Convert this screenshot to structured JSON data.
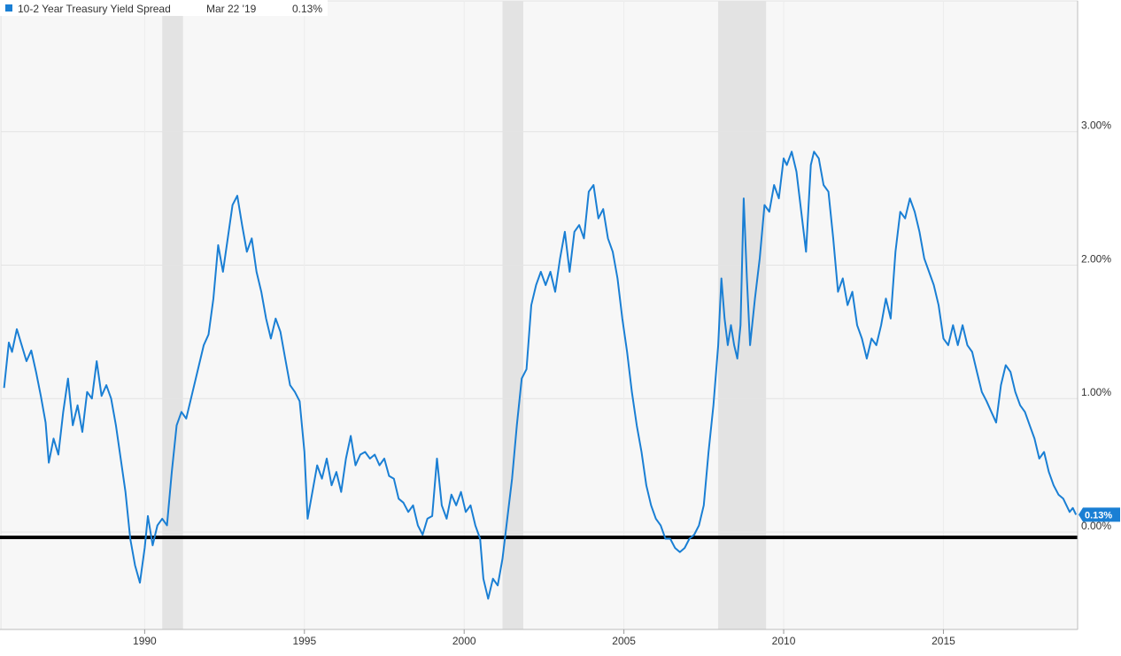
{
  "chart_data": {
    "type": "line",
    "title": "",
    "xlabel": "",
    "ylabel": "",
    "xlim": [
      1985.5,
      2019.2
    ],
    "ylim": [
      -0.73,
      3.98
    ],
    "grid": true,
    "legend": {
      "placement": "top-left",
      "series_name": "10-2 Year Treasury Yield Spread",
      "date": "Mar 22 '19",
      "value": "0.13%",
      "color": "#1a7fd4"
    },
    "last_value_label": "0.13%",
    "x_ticks": [
      {
        "x": 1990,
        "label": "1990"
      },
      {
        "x": 1995,
        "label": "1995"
      },
      {
        "x": 2000,
        "label": "2000"
      },
      {
        "x": 2005,
        "label": "2005"
      },
      {
        "x": 2010,
        "label": "2010"
      },
      {
        "x": 2015,
        "label": "2015"
      }
    ],
    "y_ticks": [
      {
        "y": 0,
        "label": "0.00%"
      },
      {
        "y": 1,
        "label": "1.00%"
      },
      {
        "y": 2,
        "label": "2.00%"
      },
      {
        "y": 3,
        "label": "3.00%"
      }
    ],
    "recessions": [
      [
        1990.55,
        1991.2
      ],
      [
        2001.2,
        2001.85
      ],
      [
        2007.95,
        2009.45
      ]
    ],
    "reference_line": {
      "y": -0.04,
      "color": "#000000"
    },
    "series": [
      {
        "name": "10-2 Year Treasury Yield Spread",
        "color": "#1a7fd4",
        "points": [
          [
            1985.6,
            1.08
          ],
          [
            1985.75,
            1.42
          ],
          [
            1985.85,
            1.35
          ],
          [
            1986.0,
            1.52
          ],
          [
            1986.15,
            1.4
          ],
          [
            1986.3,
            1.28
          ],
          [
            1986.45,
            1.36
          ],
          [
            1986.6,
            1.2
          ],
          [
            1986.75,
            1.02
          ],
          [
            1986.9,
            0.82
          ],
          [
            1987.0,
            0.52
          ],
          [
            1987.15,
            0.7
          ],
          [
            1987.3,
            0.58
          ],
          [
            1987.45,
            0.9
          ],
          [
            1987.6,
            1.15
          ],
          [
            1987.75,
            0.8
          ],
          [
            1987.9,
            0.95
          ],
          [
            1988.05,
            0.75
          ],
          [
            1988.2,
            1.05
          ],
          [
            1988.35,
            1.0
          ],
          [
            1988.5,
            1.28
          ],
          [
            1988.65,
            1.02
          ],
          [
            1988.8,
            1.1
          ],
          [
            1988.95,
            1.0
          ],
          [
            1989.1,
            0.8
          ],
          [
            1989.25,
            0.55
          ],
          [
            1989.4,
            0.3
          ],
          [
            1989.55,
            -0.05
          ],
          [
            1989.7,
            -0.25
          ],
          [
            1989.85,
            -0.38
          ],
          [
            1990.0,
            -0.12
          ],
          [
            1990.1,
            0.12
          ],
          [
            1990.25,
            -0.1
          ],
          [
            1990.4,
            0.05
          ],
          [
            1990.55,
            0.1
          ],
          [
            1990.7,
            0.05
          ],
          [
            1990.85,
            0.45
          ],
          [
            1991.0,
            0.8
          ],
          [
            1991.15,
            0.9
          ],
          [
            1991.3,
            0.85
          ],
          [
            1991.5,
            1.05
          ],
          [
            1991.7,
            1.25
          ],
          [
            1991.85,
            1.4
          ],
          [
            1992.0,
            1.48
          ],
          [
            1992.15,
            1.75
          ],
          [
            1992.3,
            2.15
          ],
          [
            1992.45,
            1.95
          ],
          [
            1992.6,
            2.2
          ],
          [
            1992.75,
            2.45
          ],
          [
            1992.9,
            2.52
          ],
          [
            1993.05,
            2.3
          ],
          [
            1993.2,
            2.1
          ],
          [
            1993.35,
            2.2
          ],
          [
            1993.5,
            1.95
          ],
          [
            1993.65,
            1.8
          ],
          [
            1993.8,
            1.6
          ],
          [
            1993.95,
            1.45
          ],
          [
            1994.1,
            1.6
          ],
          [
            1994.25,
            1.5
          ],
          [
            1994.4,
            1.3
          ],
          [
            1994.55,
            1.1
          ],
          [
            1994.7,
            1.05
          ],
          [
            1994.85,
            0.98
          ],
          [
            1995.0,
            0.6
          ],
          [
            1995.1,
            0.1
          ],
          [
            1995.25,
            0.3
          ],
          [
            1995.4,
            0.5
          ],
          [
            1995.55,
            0.4
          ],
          [
            1995.7,
            0.55
          ],
          [
            1995.85,
            0.35
          ],
          [
            1996.0,
            0.45
          ],
          [
            1996.15,
            0.3
          ],
          [
            1996.3,
            0.55
          ],
          [
            1996.45,
            0.72
          ],
          [
            1996.6,
            0.5
          ],
          [
            1996.75,
            0.58
          ],
          [
            1996.9,
            0.6
          ],
          [
            1997.05,
            0.55
          ],
          [
            1997.2,
            0.58
          ],
          [
            1997.35,
            0.5
          ],
          [
            1997.5,
            0.55
          ],
          [
            1997.65,
            0.42
          ],
          [
            1997.8,
            0.4
          ],
          [
            1997.95,
            0.25
          ],
          [
            1998.1,
            0.22
          ],
          [
            1998.25,
            0.15
          ],
          [
            1998.4,
            0.2
          ],
          [
            1998.55,
            0.05
          ],
          [
            1998.7,
            -0.02
          ],
          [
            1998.85,
            0.1
          ],
          [
            1999.0,
            0.12
          ],
          [
            1999.15,
            0.55
          ],
          [
            1999.3,
            0.2
          ],
          [
            1999.45,
            0.1
          ],
          [
            1999.6,
            0.28
          ],
          [
            1999.75,
            0.2
          ],
          [
            1999.9,
            0.3
          ],
          [
            2000.05,
            0.15
          ],
          [
            2000.2,
            0.2
          ],
          [
            2000.35,
            0.05
          ],
          [
            2000.5,
            -0.05
          ],
          [
            2000.6,
            -0.35
          ],
          [
            2000.75,
            -0.5
          ],
          [
            2000.9,
            -0.35
          ],
          [
            2001.05,
            -0.4
          ],
          [
            2001.2,
            -0.2
          ],
          [
            2001.35,
            0.1
          ],
          [
            2001.5,
            0.4
          ],
          [
            2001.65,
            0.8
          ],
          [
            2001.8,
            1.15
          ],
          [
            2001.95,
            1.22
          ],
          [
            2002.1,
            1.7
          ],
          [
            2002.25,
            1.85
          ],
          [
            2002.4,
            1.95
          ],
          [
            2002.55,
            1.85
          ],
          [
            2002.7,
            1.95
          ],
          [
            2002.85,
            1.8
          ],
          [
            2003.0,
            2.05
          ],
          [
            2003.15,
            2.25
          ],
          [
            2003.3,
            1.95
          ],
          [
            2003.45,
            2.25
          ],
          [
            2003.6,
            2.3
          ],
          [
            2003.75,
            2.2
          ],
          [
            2003.9,
            2.55
          ],
          [
            2004.05,
            2.6
          ],
          [
            2004.2,
            2.35
          ],
          [
            2004.35,
            2.42
          ],
          [
            2004.5,
            2.2
          ],
          [
            2004.65,
            2.1
          ],
          [
            2004.8,
            1.9
          ],
          [
            2004.95,
            1.6
          ],
          [
            2005.1,
            1.35
          ],
          [
            2005.25,
            1.05
          ],
          [
            2005.4,
            0.8
          ],
          [
            2005.55,
            0.6
          ],
          [
            2005.7,
            0.35
          ],
          [
            2005.85,
            0.2
          ],
          [
            2006.0,
            0.1
          ],
          [
            2006.15,
            0.05
          ],
          [
            2006.3,
            -0.05
          ],
          [
            2006.45,
            -0.05
          ],
          [
            2006.6,
            -0.12
          ],
          [
            2006.75,
            -0.15
          ],
          [
            2006.9,
            -0.12
          ],
          [
            2007.05,
            -0.05
          ],
          [
            2007.2,
            -0.02
          ],
          [
            2007.35,
            0.05
          ],
          [
            2007.5,
            0.2
          ],
          [
            2007.65,
            0.6
          ],
          [
            2007.8,
            0.95
          ],
          [
            2007.95,
            1.4
          ],
          [
            2008.05,
            1.9
          ],
          [
            2008.15,
            1.6
          ],
          [
            2008.25,
            1.4
          ],
          [
            2008.35,
            1.55
          ],
          [
            2008.45,
            1.4
          ],
          [
            2008.55,
            1.3
          ],
          [
            2008.65,
            1.55
          ],
          [
            2008.75,
            2.5
          ],
          [
            2008.85,
            1.9
          ],
          [
            2008.95,
            1.4
          ],
          [
            2009.1,
            1.75
          ],
          [
            2009.25,
            2.05
          ],
          [
            2009.4,
            2.45
          ],
          [
            2009.55,
            2.4
          ],
          [
            2009.7,
            2.6
          ],
          [
            2009.85,
            2.5
          ],
          [
            2010.0,
            2.8
          ],
          [
            2010.1,
            2.75
          ],
          [
            2010.25,
            2.85
          ],
          [
            2010.4,
            2.7
          ],
          [
            2010.55,
            2.4
          ],
          [
            2010.7,
            2.1
          ],
          [
            2010.85,
            2.75
          ],
          [
            2010.95,
            2.85
          ],
          [
            2011.1,
            2.8
          ],
          [
            2011.25,
            2.6
          ],
          [
            2011.4,
            2.55
          ],
          [
            2011.55,
            2.2
          ],
          [
            2011.7,
            1.8
          ],
          [
            2011.85,
            1.9
          ],
          [
            2012.0,
            1.7
          ],
          [
            2012.15,
            1.8
          ],
          [
            2012.3,
            1.55
          ],
          [
            2012.45,
            1.45
          ],
          [
            2012.6,
            1.3
          ],
          [
            2012.75,
            1.45
          ],
          [
            2012.9,
            1.4
          ],
          [
            2013.05,
            1.55
          ],
          [
            2013.2,
            1.75
          ],
          [
            2013.35,
            1.6
          ],
          [
            2013.5,
            2.1
          ],
          [
            2013.65,
            2.4
          ],
          [
            2013.8,
            2.35
          ],
          [
            2013.95,
            2.5
          ],
          [
            2014.1,
            2.4
          ],
          [
            2014.25,
            2.25
          ],
          [
            2014.4,
            2.05
          ],
          [
            2014.55,
            1.95
          ],
          [
            2014.7,
            1.85
          ],
          [
            2014.85,
            1.7
          ],
          [
            2015.0,
            1.45
          ],
          [
            2015.15,
            1.4
          ],
          [
            2015.3,
            1.55
          ],
          [
            2015.45,
            1.4
          ],
          [
            2015.6,
            1.55
          ],
          [
            2015.75,
            1.4
          ],
          [
            2015.9,
            1.35
          ],
          [
            2016.05,
            1.2
          ],
          [
            2016.2,
            1.05
          ],
          [
            2016.35,
            0.98
          ],
          [
            2016.5,
            0.9
          ],
          [
            2016.65,
            0.82
          ],
          [
            2016.8,
            1.1
          ],
          [
            2016.95,
            1.25
          ],
          [
            2017.1,
            1.2
          ],
          [
            2017.25,
            1.05
          ],
          [
            2017.4,
            0.95
          ],
          [
            2017.55,
            0.9
          ],
          [
            2017.7,
            0.8
          ],
          [
            2017.85,
            0.7
          ],
          [
            2018.0,
            0.55
          ],
          [
            2018.15,
            0.6
          ],
          [
            2018.3,
            0.45
          ],
          [
            2018.45,
            0.35
          ],
          [
            2018.6,
            0.28
          ],
          [
            2018.75,
            0.25
          ],
          [
            2018.85,
            0.2
          ],
          [
            2018.95,
            0.15
          ],
          [
            2019.05,
            0.18
          ],
          [
            2019.15,
            0.13
          ]
        ]
      }
    ]
  }
}
